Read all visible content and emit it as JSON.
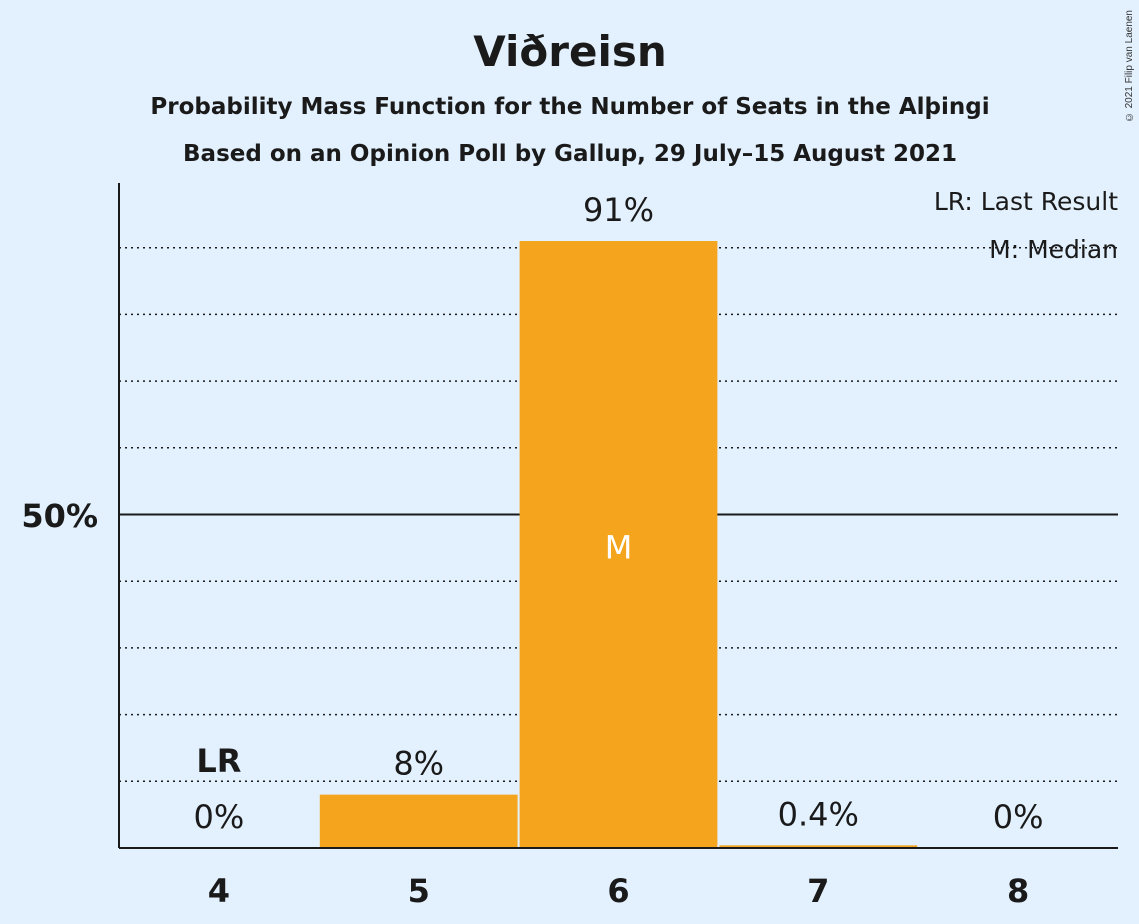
{
  "chart_data": {
    "type": "bar",
    "title": "Viðreisn",
    "subtitle": "Probability Mass Function for the Number of Seats in the Alþingi",
    "subtitle2": "Based on an Opinion Poll by Gallup, 29 July–15 August 2021",
    "categories": [
      "4",
      "5",
      "6",
      "7",
      "8"
    ],
    "values": [
      0,
      8,
      91,
      0.4,
      0
    ],
    "value_labels": [
      "0%",
      "8%",
      "91%",
      "0.4%",
      "0%"
    ],
    "ylim": [
      0,
      100
    ],
    "ytick_label": "50%",
    "ytick_value": 50,
    "last_result_category": "4",
    "last_result_marker": "LR",
    "median_category": "6",
    "median_marker": "M",
    "legend": [
      "LR: Last Result",
      "M: Median"
    ],
    "legend_position": "top-right",
    "grid": true,
    "bar_color": "#f4a51d",
    "background_color": "#e3f1fe"
  },
  "copyright": "© 2021 Filip van Laenen"
}
